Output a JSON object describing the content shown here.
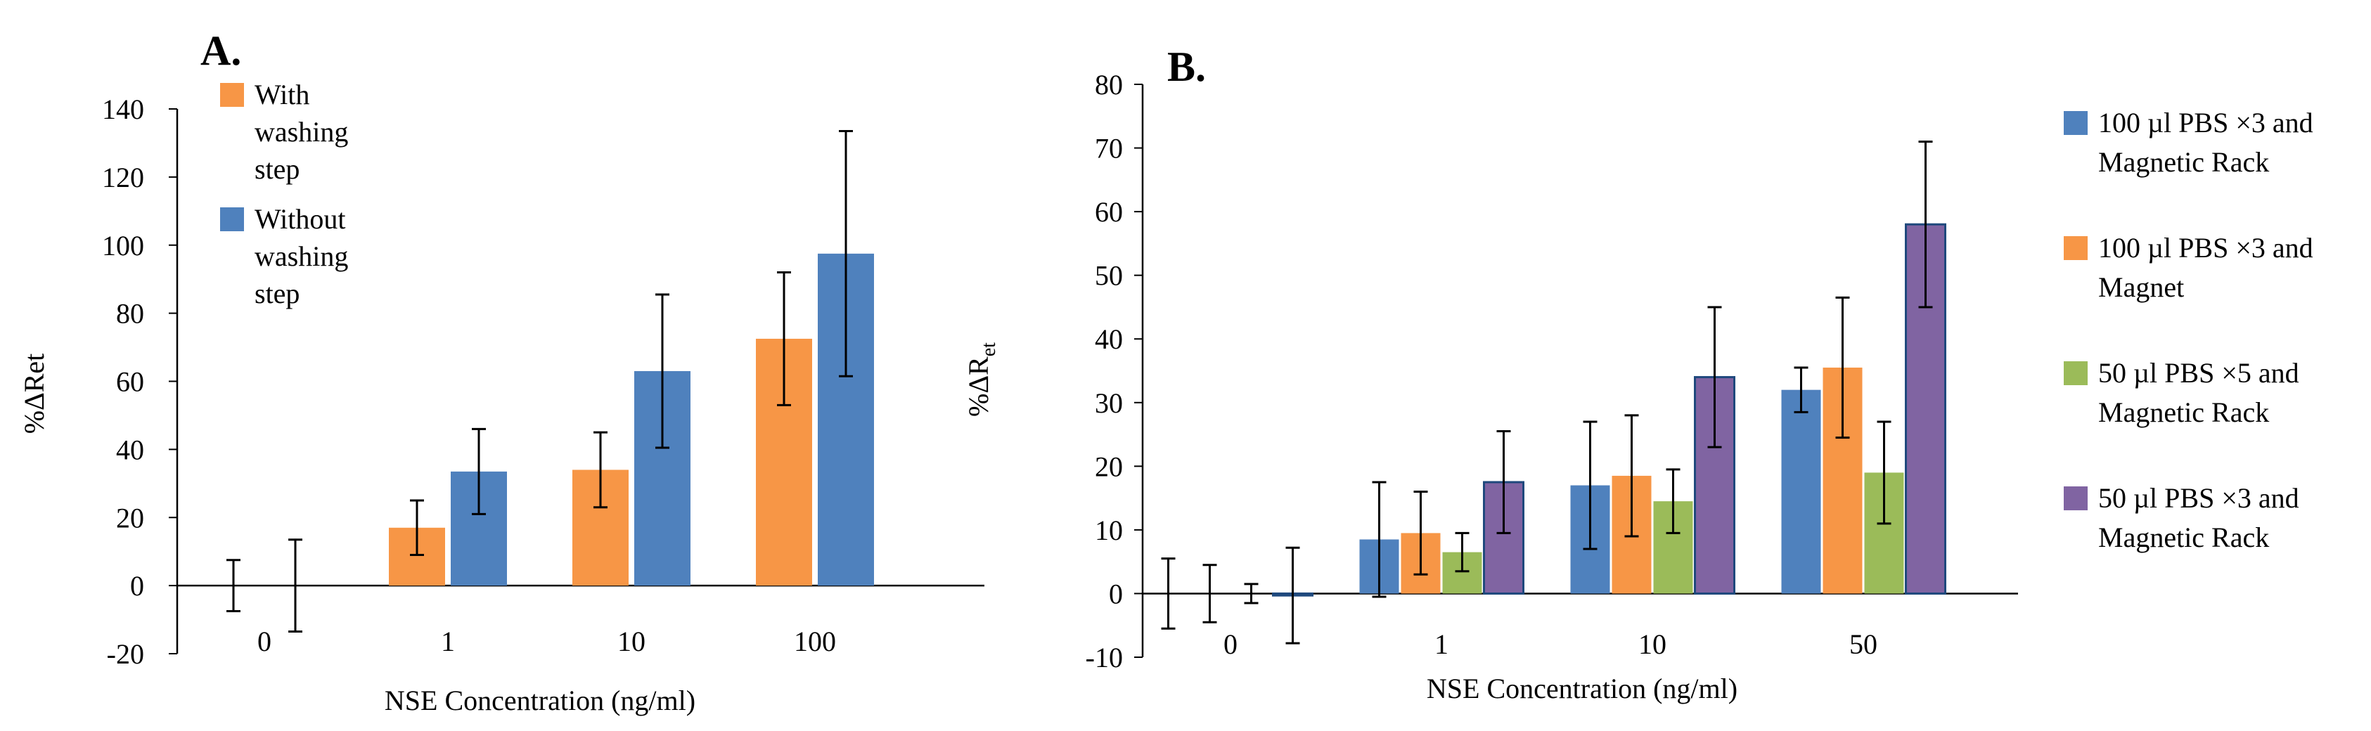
{
  "chart_data": [
    {
      "panel": "A.",
      "type": "bar",
      "title": "",
      "xlabel": "NSE Concentration (ng/ml)",
      "ylabel": "%ΔRet",
      "ylim": [
        -20,
        140
      ],
      "yticks": [
        -20,
        0,
        20,
        40,
        60,
        80,
        100,
        120,
        140
      ],
      "ytick_labels": [
        "-20",
        "0",
        "20",
        "40",
        "60",
        "80",
        "100",
        "120",
        "140"
      ],
      "categories": [
        "0",
        "1",
        "10",
        "100"
      ],
      "legend_position": "top-left",
      "series": [
        {
          "name": "With washing step",
          "legend_lines": [
            "With",
            "washing",
            "step"
          ],
          "color": "#f79646",
          "values": [
            0,
            17,
            34,
            72.5
          ],
          "errors": [
            7.5,
            8,
            11,
            19.5
          ]
        },
        {
          "name": "Without washing step",
          "legend_lines": [
            "Without",
            "washing",
            "step"
          ],
          "color": "#4f81bd",
          "values": [
            0,
            33.5,
            63,
            97.5
          ],
          "errors": [
            13.5,
            12.5,
            22.5,
            36
          ]
        }
      ]
    },
    {
      "panel": "B.",
      "type": "bar",
      "title": "",
      "xlabel": "NSE Concentration (ng/ml)",
      "ylabel": "%ΔR",
      "ylabel_subscript": "et",
      "ylim": [
        -10,
        80
      ],
      "yticks": [
        -10,
        0,
        10,
        20,
        30,
        40,
        50,
        60,
        70,
        80
      ],
      "ytick_labels": [
        "-10",
        "0",
        "10",
        "20",
        "30",
        "40",
        "50",
        "60",
        "70",
        "80"
      ],
      "categories": [
        "0",
        "1",
        "10",
        "50"
      ],
      "legend_position": "right",
      "series": [
        {
          "name": "100 µl PBS ×3 and Magnetic Rack",
          "legend_lines": [
            "100 µl PBS ×3 and",
            "Magnetic Rack"
          ],
          "color": "#4f81bd",
          "values": [
            0,
            8.5,
            17,
            32
          ],
          "errors": [
            5.5,
            9,
            10,
            3.5
          ]
        },
        {
          "name": "100 µl PBS ×3 and Magnet",
          "legend_lines": [
            "100 µl PBS ×3 and",
            "Magnet"
          ],
          "color": "#f79646",
          "values": [
            0,
            9.5,
            18.5,
            35.5
          ],
          "errors": [
            4.5,
            6.5,
            9.5,
            11
          ]
        },
        {
          "name": "50 µl PBS ×5 and Magnetic Rack",
          "legend_lines": [
            "50 µl PBS ×5 and",
            "Magnetic Rack"
          ],
          "color": "#9bbb59",
          "values": [
            0,
            6.5,
            14.5,
            19
          ],
          "errors": [
            1.5,
            3,
            5,
            8
          ]
        },
        {
          "name": "50 µl PBS ×3 and Magnetic Rack",
          "legend_lines": [
            "50 µl PBS ×3 and",
            "Magnetic Rack"
          ],
          "color": "#8064a2",
          "edge": "#1f497d",
          "values": [
            -0.3,
            17.5,
            34,
            58
          ],
          "errors": [
            7.5,
            8,
            11,
            13
          ]
        }
      ]
    }
  ]
}
